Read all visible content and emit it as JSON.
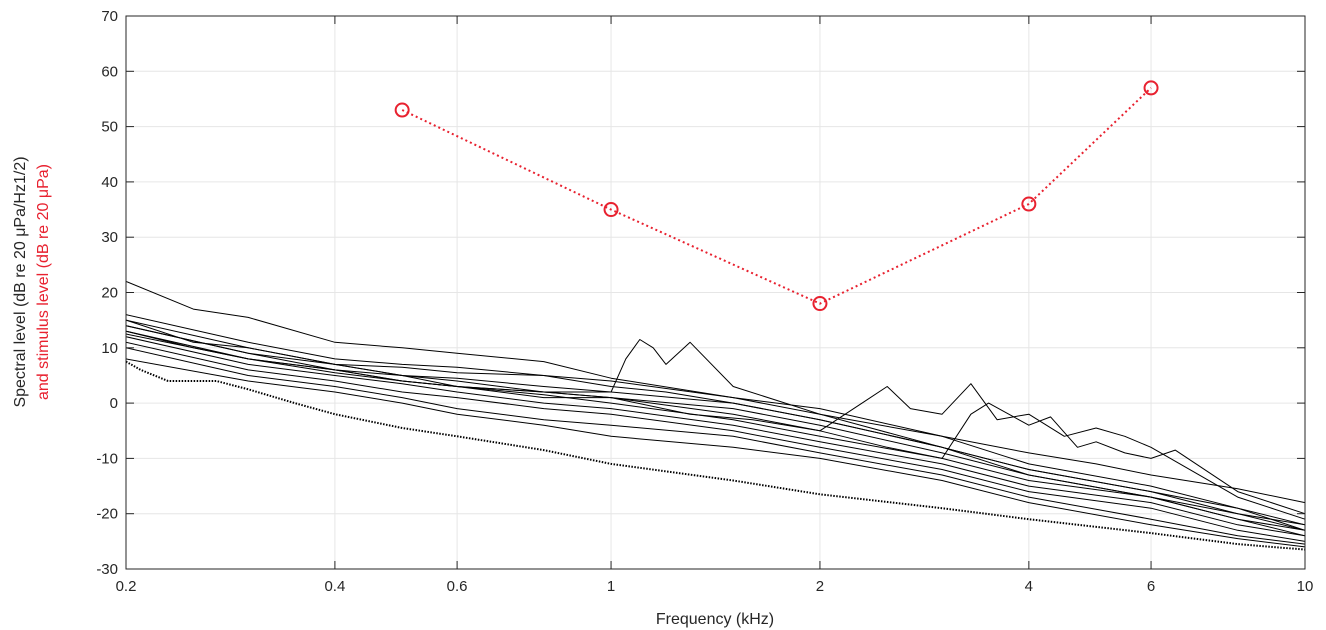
{
  "chart_data": {
    "type": "line",
    "title": "",
    "xlabel": "Frequency (kHz)",
    "ylabel_line1": "Spectral level (dB re 20 μPa/Hz1/2)",
    "ylabel_line2": "and stimulus level (dB re 20 μPa)",
    "x_scale": "log",
    "xlim": [
      0.2,
      10
    ],
    "ylim": [
      -30,
      70
    ],
    "x_ticks": [
      0.2,
      0.4,
      0.6,
      1,
      2,
      4,
      6,
      10
    ],
    "x_tick_labels": [
      "0.2",
      "0.4",
      "0.6",
      "1",
      "2",
      "4",
      "6",
      "10"
    ],
    "y_ticks": [
      -30,
      -20,
      -10,
      0,
      10,
      20,
      30,
      40,
      50,
      60,
      70
    ],
    "y_tick_labels": [
      "-30",
      "-20",
      "-10",
      "0",
      "10",
      "20",
      "30",
      "40",
      "50",
      "60",
      "70"
    ],
    "grid": true,
    "colors": {
      "spectra": "#000000",
      "stimulus": "#e8212f",
      "grid": "#e6e6e6",
      "axes": "#262626"
    },
    "stimulus_series": {
      "style": "dotted line with circle markers",
      "x": [
        0.5,
        1,
        2,
        4,
        6
      ],
      "y": [
        53,
        35,
        18,
        36,
        57
      ]
    },
    "floor_series": {
      "style": "dotted black",
      "x": [
        0.2,
        0.21,
        0.23,
        0.25,
        0.27,
        0.3,
        0.35,
        0.4,
        0.5,
        0.6,
        0.8,
        1,
        1.5,
        2,
        3,
        4,
        6,
        8,
        10
      ],
      "y": [
        7.5,
        6,
        4,
        4,
        4,
        2.5,
        0,
        -2,
        -4.5,
        -6,
        -8.5,
        -11,
        -14,
        -16.5,
        -19,
        -21,
        -23.5,
        -25.5,
        -26.5
      ]
    },
    "spectra_series": [
      {
        "x": [
          0.2,
          0.25,
          0.3,
          0.4,
          0.5,
          0.6,
          0.8,
          1,
          1.5,
          2,
          3,
          4,
          5,
          6,
          8,
          10
        ],
        "y": [
          22,
          17,
          15.5,
          11,
          10,
          9,
          7.5,
          4.5,
          1,
          -2,
          -6,
          -9,
          -11,
          -13,
          -15.5,
          -18
        ]
      },
      {
        "x": [
          0.2,
          0.3,
          0.4,
          0.5,
          0.6,
          0.8,
          1,
          1.2,
          1.5,
          2,
          3,
          4,
          6,
          8,
          10
        ],
        "y": [
          16,
          11,
          8,
          7,
          6.5,
          5,
          3,
          2,
          0,
          -3,
          -8,
          -12,
          -16,
          -19,
          -22
        ]
      },
      {
        "x": [
          0.2,
          0.25,
          0.3,
          0.4,
          0.5,
          0.6,
          0.8,
          1,
          1.5,
          2,
          3,
          4,
          6,
          8,
          10
        ],
        "y": [
          15,
          11,
          10,
          7,
          6.5,
          5.5,
          5,
          4,
          1,
          -1,
          -6,
          -11,
          -15,
          -19,
          -23
        ]
      },
      {
        "x": [
          0.2,
          0.3,
          0.4,
          0.5,
          0.6,
          0.8,
          1,
          1.5,
          2,
          3,
          4,
          6,
          8,
          10
        ],
        "y": [
          14,
          9,
          7,
          5,
          4.5,
          3,
          2,
          0,
          -3,
          -8,
          -13,
          -17,
          -20,
          -23
        ]
      },
      {
        "x": [
          0.2,
          0.25,
          0.3,
          0.4,
          0.5,
          0.6,
          0.8,
          1,
          1.5,
          2,
          3,
          4,
          6,
          8,
          10
        ],
        "y": [
          13,
          10,
          8,
          6,
          5,
          4,
          2,
          1,
          -1,
          -4,
          -9,
          -13,
          -17,
          -21,
          -24
        ]
      },
      {
        "x": [
          0.2,
          0.3,
          0.4,
          0.5,
          0.6,
          0.8,
          1,
          1.5,
          2,
          3,
          4,
          6,
          8,
          10
        ],
        "y": [
          12.5,
          8,
          5.5,
          4,
          3,
          1.5,
          0,
          -3,
          -6,
          -10,
          -14,
          -17,
          -21,
          -23
        ]
      },
      {
        "x": [
          0.2,
          0.3,
          0.4,
          0.5,
          0.6,
          0.8,
          1,
          1.5,
          2,
          3,
          4,
          6,
          8,
          10
        ],
        "y": [
          12,
          7,
          5,
          3.5,
          2,
          0,
          -1,
          -4,
          -7,
          -11,
          -15,
          -18,
          -22,
          -24
        ]
      },
      {
        "x": [
          0.2,
          0.3,
          0.4,
          0.5,
          0.6,
          0.8,
          1,
          1.5,
          2,
          3,
          4,
          6,
          8,
          10
        ],
        "y": [
          11,
          6,
          4,
          2,
          1,
          -1,
          -2,
          -5,
          -8,
          -12,
          -16,
          -19,
          -23,
          -25
        ]
      },
      {
        "x": [
          0.2,
          0.3,
          0.4,
          0.5,
          0.6,
          0.8,
          1,
          1.5,
          2,
          3,
          4,
          6,
          8,
          10
        ],
        "y": [
          10,
          5,
          3,
          1,
          -1,
          -3,
          -4,
          -6,
          -9,
          -13,
          -17,
          -21,
          -24,
          -25.5
        ]
      },
      {
        "x": [
          0.2,
          0.3,
          0.4,
          0.5,
          0.6,
          0.8,
          1,
          1.5,
          2,
          3,
          4,
          6,
          8,
          10
        ],
        "y": [
          8,
          4,
          2,
          0,
          -2,
          -4,
          -6,
          -8,
          -10,
          -14,
          -18,
          -22,
          -24.5,
          -26
        ]
      },
      {
        "x": [
          0.2,
          0.3,
          0.4,
          0.5,
          0.6,
          0.8,
          1,
          1.05,
          1.1,
          1.15,
          1.2,
          1.3,
          1.5,
          2,
          3,
          4,
          6,
          8,
          10
        ],
        "y": [
          14,
          9,
          6,
          4,
          3,
          2,
          2,
          8,
          11.5,
          10,
          7,
          11,
          3,
          -2,
          -8,
          -12,
          -16,
          -20,
          -22
        ]
      },
      {
        "x": [
          0.2,
          0.3,
          0.4,
          0.5,
          0.6,
          0.8,
          1,
          1.3,
          1.6,
          2,
          2.3,
          2.5,
          2.7,
          3,
          3.3,
          3.6,
          4,
          4.5,
          5,
          5.5,
          6,
          8,
          10
        ],
        "y": [
          13,
          8,
          6,
          4,
          3,
          1,
          1,
          -2,
          -3,
          -5,
          0,
          3,
          -1,
          -2,
          3.5,
          -3,
          -2,
          -6,
          -4.5,
          -6,
          -8,
          -17,
          -21
        ]
      },
      {
        "x": [
          0.2,
          0.3,
          0.4,
          0.5,
          0.6,
          0.8,
          1,
          1.5,
          2,
          2.5,
          3,
          3.3,
          3.5,
          4,
          4.3,
          4.7,
          5,
          5.5,
          6,
          6.5,
          8,
          10
        ],
        "y": [
          15,
          10,
          7,
          5,
          3,
          2,
          1,
          -2,
          -5,
          -8,
          -10,
          -2,
          0,
          -4,
          -2.5,
          -8,
          -7,
          -9,
          -10,
          -8.5,
          -16,
          -20
        ]
      }
    ]
  }
}
